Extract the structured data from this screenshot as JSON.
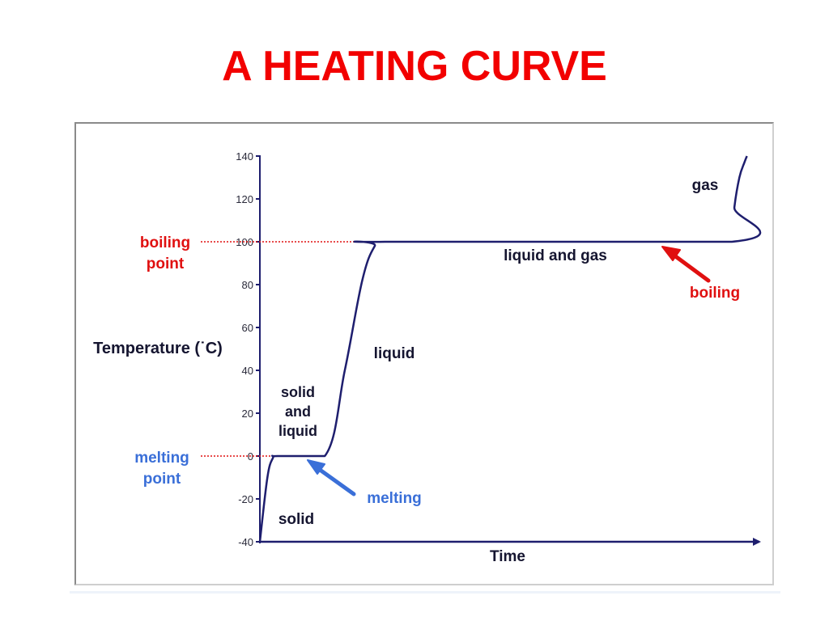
{
  "title": "A HEATING CURVE",
  "colors": {
    "title": "#f20000",
    "curve": "#1e1e6e",
    "red_label": "#e01010",
    "blue_label": "#3a6fd8",
    "text": "#151530",
    "axis": "#1e1e6e"
  },
  "chart_data": {
    "type": "line",
    "title": "A HEATING CURVE",
    "xlabel": "Time",
    "ylabel": "Temperature (˙C)",
    "ylim": [
      -40,
      140
    ],
    "yticks": [
      140,
      120,
      100,
      80,
      60,
      40,
      20,
      0,
      -20,
      -40
    ],
    "x_axis_ticks": false,
    "x_scale": "relative time 0-100 (unlabeled)",
    "series": [
      {
        "values_xy": [
          [
            0,
            -40
          ],
          [
            1.5,
            -10
          ],
          [
            2.6,
            -1
          ],
          [
            3.5,
            0
          ],
          [
            13,
            0
          ],
          [
            17,
            40
          ],
          [
            20.5,
            82
          ],
          [
            23,
            98
          ],
          [
            25,
            100
          ],
          [
            94.5,
            100
          ],
          [
            95,
            116
          ],
          [
            96,
            130
          ],
          [
            97,
            137
          ],
          [
            97.5,
            140
          ]
        ]
      }
    ],
    "reference_lines": [
      {
        "label": "boiling point",
        "y": 100,
        "style": "dotted",
        "color": "#e01010"
      },
      {
        "label": "melting point",
        "y": 0,
        "style": "dotted",
        "color": "#e01010"
      }
    ],
    "region_labels": [
      "solid",
      "solid and liquid",
      "liquid",
      "liquid and gas",
      "gas"
    ],
    "annotations": [
      {
        "text": "melting",
        "color": "#3a6fd8",
        "points_to": "solid-liquid plateau"
      },
      {
        "text": "boiling",
        "color": "#e01010",
        "points_to": "liquid-gas plateau"
      }
    ],
    "grid": false
  },
  "labels": {
    "boiling_point_line1": "boiling",
    "boiling_point_line2": "point",
    "melting_point_line1": "melting",
    "melting_point_line2": "point",
    "solid": "solid",
    "solid_liquid_1": "solid",
    "solid_liquid_2": "and",
    "solid_liquid_3": "liquid",
    "liquid": "liquid",
    "liquid_gas": "liquid and gas",
    "gas": "gas",
    "melting": "melting",
    "boiling": "boiling"
  }
}
